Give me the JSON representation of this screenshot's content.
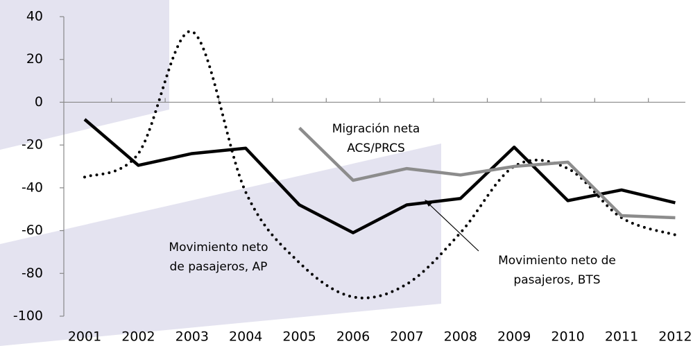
{
  "chart_data": {
    "type": "line",
    "categories": [
      "2001",
      "2002",
      "2003",
      "2004",
      "2005",
      "2006",
      "2007",
      "2008",
      "2009",
      "2010",
      "2011",
      "2012"
    ],
    "series": [
      {
        "color": "#000000",
        "style": "dotted",
        "values": [
          -35,
          -24,
          33,
          -42,
          -75,
          -91,
          -85,
          -61,
          -30,
          -31,
          -54,
          -62
        ]
      },
      {
        "color": "#000000",
        "style": "solid",
        "values": [
          -8,
          -29.5,
          -24,
          -21.5,
          -48,
          -61,
          -48,
          -45,
          -21,
          -46,
          -41,
          -47
        ]
      },
      {
        "color": "#8c8c8c",
        "style": "solid",
        "values": [
          null,
          null,
          null,
          null,
          -12,
          -36.5,
          -31,
          -34,
          -30,
          -28,
          -53,
          -54
        ]
      }
    ],
    "ylim": [
      -100,
      40
    ],
    "yticks": [
      -100,
      -80,
      -60,
      -40,
      -20,
      0,
      20,
      40
    ],
    "annotations": [
      {
        "lines": [
          "Migración neta",
          "ACS/PRCS"
        ]
      },
      {
        "lines": [
          "Movimiento neto",
          "de pasajeros, AP"
        ]
      },
      {
        "lines": [
          "Movimiento neto de",
          "pasajeros, BTS"
        ]
      }
    ]
  }
}
